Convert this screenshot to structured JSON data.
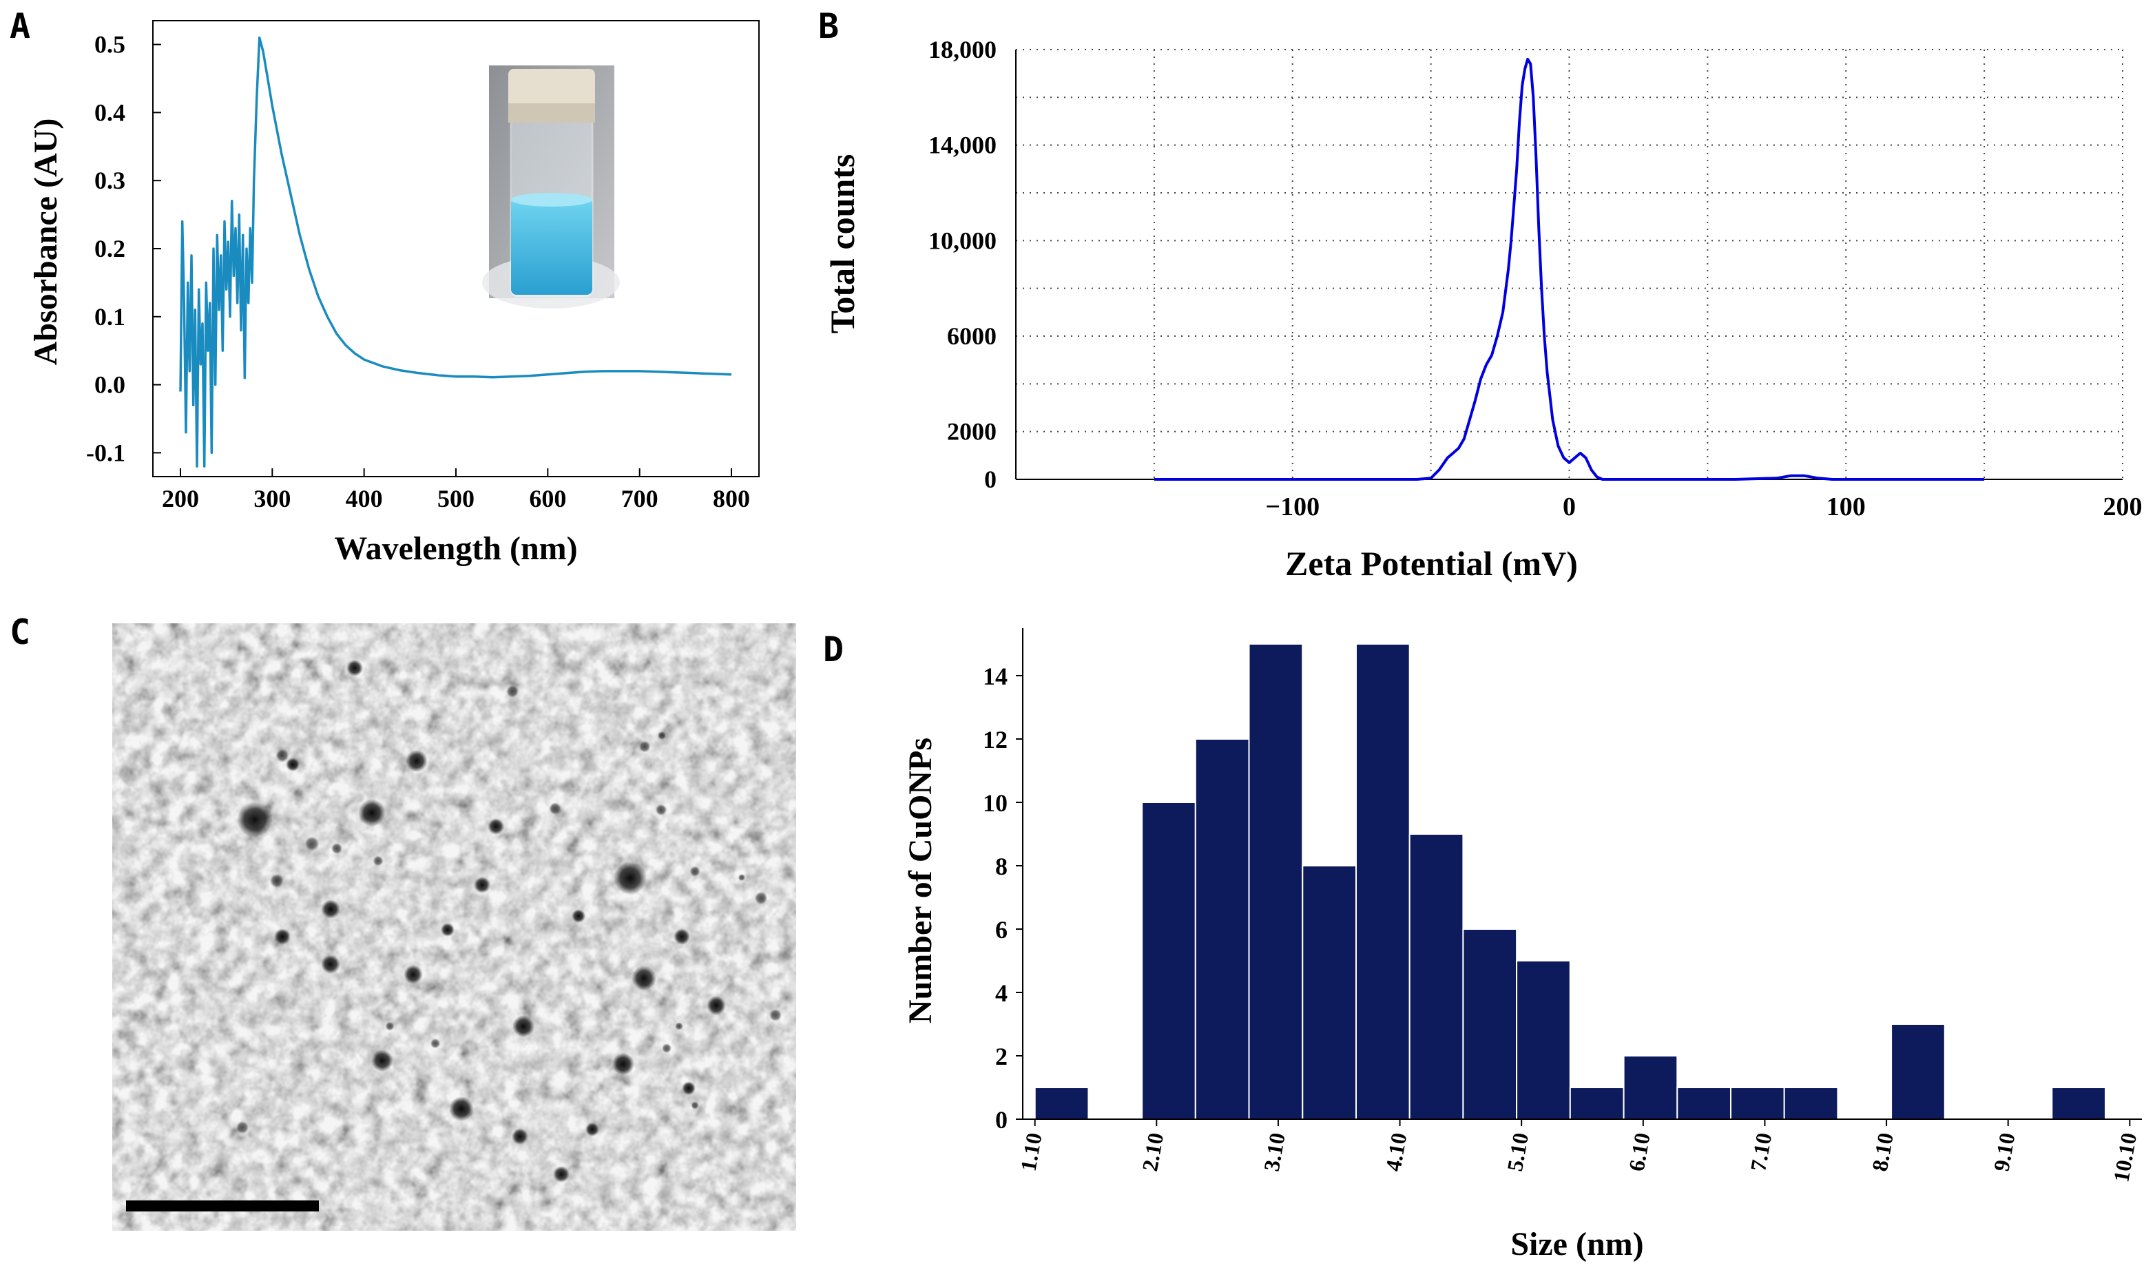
{
  "panels": {
    "a": "A",
    "b": "B",
    "c": "C",
    "d": "D"
  },
  "chart_data": [
    {
      "panel": "A",
      "type": "line",
      "xlabel": "Wavelength (nm)",
      "ylabel": "Absorbance (AU)",
      "xlim": [
        170,
        830
      ],
      "ylim": [
        -0.135,
        0.535
      ],
      "xticks": [
        200,
        300,
        400,
        500,
        600,
        700,
        800
      ],
      "yticks": [
        -0.1,
        0.0,
        0.1,
        0.2,
        0.3,
        0.4,
        0.5
      ],
      "ytick_labels": [
        "-0.1",
        "0.0",
        "0.1",
        "0.2",
        "0.3",
        "0.4",
        "0.5"
      ],
      "color": "#1a8bbf",
      "series": [
        {
          "x": [
            200,
            202,
            204,
            206,
            208,
            210,
            212,
            214,
            216,
            218,
            220,
            222,
            224,
            226,
            228,
            230,
            232,
            234,
            236,
            238,
            240,
            242,
            244,
            246,
            248,
            250,
            252,
            254,
            256,
            258,
            260,
            262,
            264,
            266,
            268,
            270,
            272,
            274,
            276,
            278,
            280,
            283,
            286,
            290,
            295,
            300,
            310,
            320,
            330,
            340,
            350,
            360,
            370,
            380,
            390,
            400,
            420,
            440,
            460,
            480,
            500,
            520,
            540,
            560,
            580,
            600,
            620,
            640,
            660,
            680,
            700,
            720,
            740,
            760,
            780,
            800
          ],
          "y": [
            -0.01,
            0.24,
            0.12,
            -0.07,
            0.15,
            0.02,
            0.19,
            -0.03,
            0.11,
            -0.12,
            0.14,
            0.03,
            0.09,
            -0.12,
            0.15,
            0.05,
            0.12,
            -0.1,
            0.2,
            0.0,
            0.22,
            0.11,
            0.19,
            0.05,
            0.24,
            0.14,
            0.21,
            0.1,
            0.27,
            0.16,
            0.23,
            0.12,
            0.25,
            0.08,
            0.22,
            0.01,
            0.2,
            0.12,
            0.23,
            0.15,
            0.3,
            0.42,
            0.51,
            0.49,
            0.45,
            0.41,
            0.34,
            0.28,
            0.22,
            0.17,
            0.13,
            0.1,
            0.075,
            0.058,
            0.046,
            0.037,
            0.027,
            0.021,
            0.017,
            0.014,
            0.012,
            0.012,
            0.011,
            0.012,
            0.013,
            0.015,
            0.017,
            0.019,
            0.02,
            0.02,
            0.02,
            0.019,
            0.018,
            0.017,
            0.016,
            0.015
          ]
        }
      ]
    },
    {
      "panel": "B",
      "type": "line",
      "xlabel": "Zeta Potential (mV)",
      "ylabel": "Total counts",
      "xlim": [
        -200,
        200
      ],
      "ylim": [
        0,
        18000
      ],
      "xticks": [
        -100,
        0,
        100,
        200
      ],
      "xtick_labels": [
        "−100",
        "0",
        "100",
        "200"
      ],
      "yticks": [
        0,
        2000,
        6000,
        10000,
        14000,
        18000
      ],
      "ytick_labels": [
        "0",
        "2000",
        "6000",
        "10,000",
        "14,000",
        "18,000"
      ],
      "grid": true,
      "color": "#0000e0",
      "series": [
        {
          "x": [
            -150,
            -100,
            -60,
            -55,
            -50,
            -47,
            -44,
            -42,
            -40,
            -38,
            -36,
            -34,
            -32,
            -30,
            -28,
            -26,
            -24,
            -22,
            -21,
            -20,
            -19,
            -18,
            -17,
            -16,
            -15,
            -14,
            -13,
            -12,
            -11,
            -10,
            -9,
            -8,
            -6,
            -4,
            -2,
            0,
            2,
            4,
            6,
            8,
            10,
            12,
            15,
            20,
            40,
            60,
            75,
            80,
            85,
            90,
            95,
            110,
            150
          ],
          "y": [
            0,
            0,
            0,
            0,
            50,
            400,
            900,
            1100,
            1300,
            1700,
            2500,
            3300,
            4200,
            4800,
            5200,
            6000,
            7000,
            8800,
            10000,
            11500,
            13000,
            15000,
            16500,
            17200,
            17600,
            17400,
            16000,
            13500,
            10500,
            8000,
            6000,
            4500,
            2500,
            1400,
            900,
            700,
            900,
            1100,
            900,
            400,
            100,
            0,
            0,
            0,
            0,
            0,
            50,
            150,
            150,
            50,
            0,
            0,
            0
          ]
        }
      ]
    },
    {
      "panel": "D",
      "type": "bar",
      "xlabel": "Size (nm)",
      "ylabel": "Number of CuONPs",
      "xlim": [
        1.0,
        10.2
      ],
      "ylim": [
        0,
        15.5
      ],
      "xticks": [
        1.1,
        2.1,
        3.1,
        4.1,
        5.1,
        6.1,
        7.1,
        8.1,
        9.1,
        10.1
      ],
      "xtick_labels": [
        "1.10",
        "2.10",
        "3.10",
        "4.10",
        "5.10",
        "6.10",
        "7.10",
        "8.10",
        "9.10",
        "10.10"
      ],
      "yticks": [
        0,
        2,
        4,
        6,
        8,
        10,
        12,
        14
      ],
      "ytick_labels": [
        "0",
        "2",
        "4",
        "6",
        "8",
        "10",
        "12",
        "14"
      ],
      "color": "#0d1a5c",
      "bin_width": 0.44,
      "bin_starts": [
        1.1,
        1.98,
        2.42,
        2.86,
        3.3,
        3.74,
        4.18,
        4.62,
        5.06,
        5.5,
        5.94,
        6.38,
        6.82,
        7.26,
        8.14,
        9.46
      ],
      "values": [
        1,
        10,
        12,
        15,
        8,
        15,
        9,
        6,
        5,
        1,
        2,
        1,
        1,
        1,
        3,
        1
      ]
    }
  ]
}
